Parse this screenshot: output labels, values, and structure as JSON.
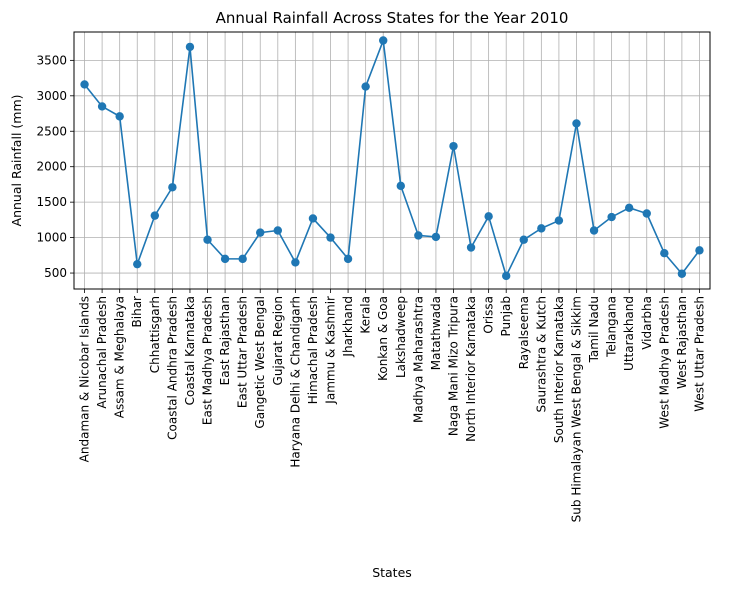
{
  "chart_data": {
    "type": "line",
    "title": "Annual Rainfall Across States for the Year 2010",
    "xlabel": "States",
    "ylabel": "Annual Rainfall (mm)",
    "ylim": [
      275,
      3900
    ],
    "yticks": [
      500,
      1000,
      1500,
      2000,
      2500,
      3000,
      3500
    ],
    "grid": true,
    "line_color": "#1f77b4",
    "categories": [
      "Andaman & Nicobar Islands",
      "Arunachal Pradesh",
      "Assam & Meghalaya",
      "Bihar",
      "Chhattisgarh",
      "Coastal Andhra Pradesh",
      "Coastal Karnataka",
      "East Madhya Pradesh",
      "East Rajasthan",
      "East Uttar Pradesh",
      "Gangetic West Bengal",
      "Gujarat Region",
      "Haryana Delhi & Chandigarh",
      "Himachal Pradesh",
      "Jammu & Kashmir",
      "Jharkhand",
      "Kerala",
      "Konkan & Goa",
      "Lakshadweep",
      "Madhya Maharashtra",
      "Matathwada",
      "Naga Mani Mizo Tripura",
      "North Interior Karnataka",
      "Orissa",
      "Punjab",
      "Rayalseema",
      "Saurashtra & Kutch",
      "South Interior Karnataka",
      "Sub Himalayan West Bengal & Sikkim",
      "Tamil Nadu",
      "Telangana",
      "Uttarakhand",
      "Vidarbha",
      "West Madhya Pradesh",
      "West Rajasthan",
      "West Uttar Pradesh"
    ],
    "values": [
      3160,
      2850,
      2710,
      625,
      1310,
      1710,
      3690,
      970,
      700,
      700,
      1070,
      1100,
      650,
      1270,
      1000,
      700,
      3130,
      3780,
      1730,
      1030,
      1010,
      2290,
      860,
      1300,
      460,
      970,
      1130,
      1240,
      2610,
      1100,
      1290,
      1420,
      1340,
      780,
      490,
      820
    ]
  }
}
